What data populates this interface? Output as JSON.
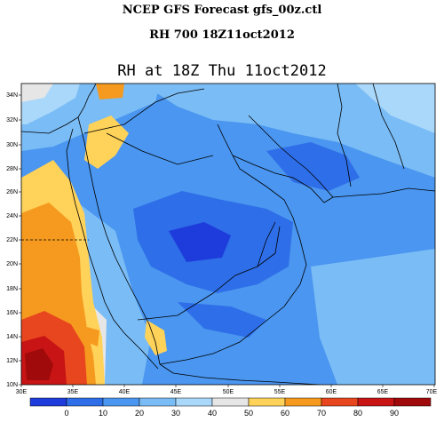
{
  "header": {
    "line1": "NCEP GFS Forecast gfs_00z.ctl",
    "line2": "RH 700 18Z11oct2012"
  },
  "map": {
    "title": "RH at 18Z Thu 11oct2012",
    "lat_labels": [
      "34N",
      "32N",
      "30N",
      "28N",
      "26N",
      "24N",
      "22N",
      "20N",
      "18N",
      "16N",
      "14N",
      "12N",
      "10N"
    ],
    "lon_labels": [
      "30E",
      "35E",
      "40E",
      "45E",
      "50E",
      "55E",
      "60E",
      "65E",
      "70E"
    ]
  },
  "colorbar": {
    "labels": [
      "0",
      "10",
      "20",
      "30",
      "40",
      "50",
      "60",
      "70",
      "80",
      "90"
    ],
    "colors": [
      "#1e3cdc",
      "#2e6ee8",
      "#4a96f0",
      "#7abcf5",
      "#aad8fa",
      "#e6e6e6",
      "#ffd25a",
      "#f59a1e",
      "#e8461e",
      "#c81414",
      "#a00a0a"
    ]
  },
  "colors": {
    "base_blue": "#4a96f0",
    "dark_blue": "#2e6ee8",
    "deep_blue": "#1e3cdc",
    "mid_blue": "#7abcf5",
    "light_blue": "#aad8fa",
    "gray": "#e6e6e6",
    "yellow": "#ffd25a",
    "orange": "#f59a1e",
    "red_orange": "#e8461e",
    "red": "#c81414",
    "dark_red": "#a00a0a"
  }
}
